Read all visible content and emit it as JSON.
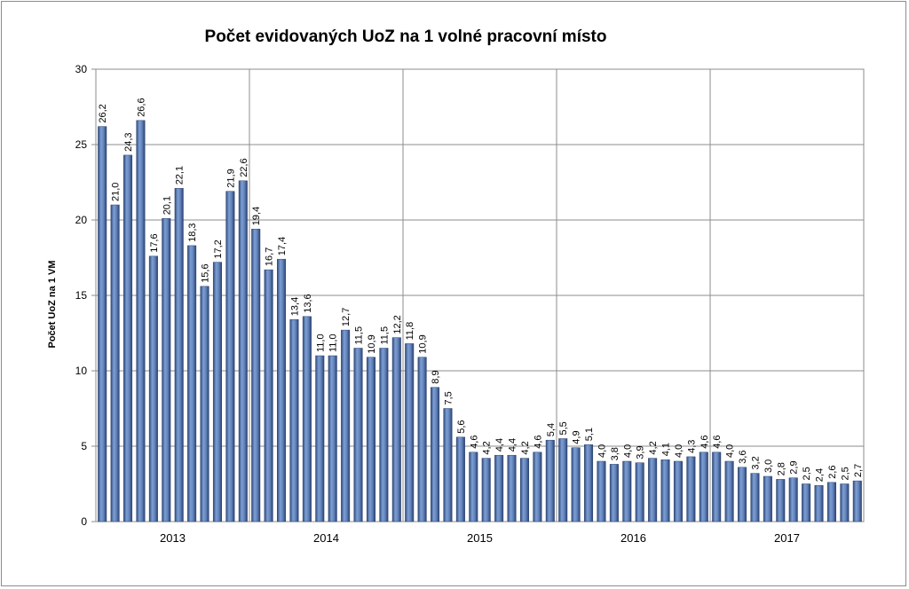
{
  "chart_data": {
    "type": "bar",
    "title": "Počet evidovaných UoZ na 1 volné pracovní místo",
    "xlabel": "",
    "ylabel": "Počet UoZ na 1 VM",
    "ylim": [
      0,
      30
    ],
    "yticks": [
      0,
      5,
      10,
      15,
      20,
      25,
      30
    ],
    "grid": true,
    "legend": "none",
    "bar_color": "#4f6fa8",
    "year_labels": [
      "2013",
      "2014",
      "2015",
      "2016",
      "2017"
    ],
    "categories": [
      "2013-01",
      "2013-02",
      "2013-03",
      "2013-04",
      "2013-05",
      "2013-06",
      "2013-07",
      "2013-08",
      "2013-09",
      "2013-10",
      "2013-11",
      "2013-12",
      "2014-01",
      "2014-02",
      "2014-03",
      "2014-04",
      "2014-05",
      "2014-06",
      "2014-07",
      "2014-08",
      "2014-09",
      "2014-10",
      "2014-11",
      "2014-12",
      "2015-01",
      "2015-02",
      "2015-03",
      "2015-04",
      "2015-05",
      "2015-06",
      "2015-07",
      "2015-08",
      "2015-09",
      "2015-10",
      "2015-11",
      "2015-12",
      "2016-01",
      "2016-02",
      "2016-03",
      "2016-04",
      "2016-05",
      "2016-06",
      "2016-07",
      "2016-08",
      "2016-09",
      "2016-10",
      "2016-11",
      "2016-12",
      "2017-01",
      "2017-02",
      "2017-03",
      "2017-04",
      "2017-05",
      "2017-06",
      "2017-07",
      "2017-08",
      "2017-09",
      "2017-10",
      "2017-11",
      "2017-12"
    ],
    "values": [
      26.2,
      21.0,
      24.3,
      26.6,
      17.6,
      20.1,
      22.1,
      18.3,
      15.6,
      17.2,
      21.9,
      22.6,
      19.4,
      16.7,
      17.4,
      13.4,
      13.6,
      11.0,
      11.0,
      12.7,
      11.5,
      10.9,
      11.5,
      12.2,
      11.8,
      10.9,
      8.9,
      7.5,
      5.6,
      4.6,
      4.2,
      4.4,
      4.4,
      4.2,
      4.6,
      5.4,
      5.5,
      4.9,
      5.1,
      4.0,
      3.8,
      4.0,
      3.9,
      4.2,
      4.1,
      4.0,
      4.3,
      4.6,
      4.6,
      4.0,
      3.6,
      3.2,
      3.0,
      2.8,
      2.9,
      2.5,
      2.4,
      2.6,
      2.5,
      2.7
    ],
    "value_labels": [
      "26,2",
      "21,0",
      "24,3",
      "26,6",
      "17,6",
      "20,1",
      "22,1",
      "18,3",
      "15,6",
      "17,2",
      "21,9",
      "22,6",
      "19,4",
      "16,7",
      "17,4",
      "13,4",
      "13,6",
      "11,0",
      "11,0",
      "12,7",
      "11,5",
      "10,9",
      "11,5",
      "12,2",
      "11,8",
      "10,9",
      "8,9",
      "7,5",
      "5,6",
      "4,6",
      "4,2",
      "4,4",
      "4,4",
      "4,2",
      "4,6",
      "5,4",
      "5,5",
      "4,9",
      "5,1",
      "4,0",
      "3,8",
      "4,0",
      "3,9",
      "4,2",
      "4,1",
      "4,0",
      "4,3",
      "4,6",
      "4,6",
      "4,0",
      "3,6",
      "3,2",
      "3,0",
      "2,8",
      "2,9",
      "2,5",
      "2,4",
      "2,6",
      "2,5",
      "2,7"
    ]
  }
}
